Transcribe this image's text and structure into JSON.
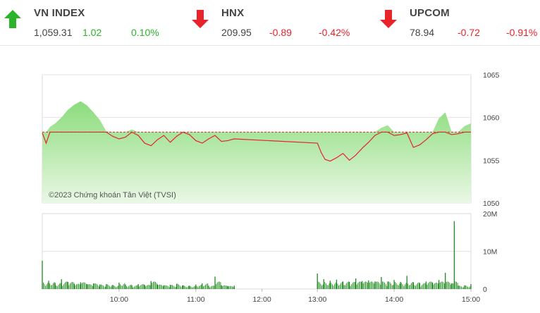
{
  "tickers": [
    {
      "name": "VN INDEX",
      "value": "1,059.31",
      "change": "1.02",
      "pct": "0.10%",
      "direction": "up",
      "selected": true
    },
    {
      "name": "HNX",
      "value": "209.95",
      "change": "-0.89",
      "pct": "-0.42%",
      "direction": "down",
      "selected": false
    },
    {
      "name": "UPCOM",
      "value": "78.94",
      "change": "-0.72",
      "pct": "-0.91%",
      "direction": "down",
      "selected": false
    }
  ],
  "colors": {
    "up": "#2bb42b",
    "down": "#e8232a",
    "area": "#9be38f",
    "volume": "#1f8a1f",
    "reference": "#c0392b"
  },
  "chart_data": [
    {
      "type": "line",
      "watermark": "©2023 Chứng khoán Tân Việt (TVSI)",
      "ylim": [
        1050,
        1065
      ],
      "yticks": [
        "1065",
        "1060",
        "1055",
        "1050"
      ],
      "reference": 1058.29,
      "series": [
        {
          "points": [
            [
              "09:00",
              1058.2
            ],
            [
              "09:03",
              1057.0
            ],
            [
              "09:06",
              1058.9
            ],
            [
              "09:10",
              1059.3
            ],
            [
              "09:15",
              1060.0
            ],
            [
              "09:20",
              1060.9
            ],
            [
              "09:25",
              1061.5
            ],
            [
              "09:30",
              1061.9
            ],
            [
              "09:35",
              1061.4
            ],
            [
              "09:40",
              1060.6
            ],
            [
              "09:45",
              1059.7
            ],
            [
              "09:50",
              1058.4
            ],
            [
              "09:55",
              1057.8
            ],
            [
              "10:00",
              1057.5
            ],
            [
              "10:05",
              1057.7
            ],
            [
              "10:10",
              1058.6
            ],
            [
              "10:15",
              1057.9
            ],
            [
              "10:20",
              1057.0
            ],
            [
              "10:25",
              1056.7
            ],
            [
              "10:30",
              1057.4
            ],
            [
              "10:35",
              1057.9
            ],
            [
              "10:40",
              1057.1
            ],
            [
              "10:45",
              1057.8
            ],
            [
              "10:50",
              1058.3
            ],
            [
              "10:55",
              1058.0
            ],
            [
              "11:00",
              1057.3
            ],
            [
              "11:05",
              1057.0
            ],
            [
              "11:10",
              1057.5
            ],
            [
              "11:15",
              1057.9
            ],
            [
              "11:20",
              1057.2
            ],
            [
              "11:25",
              1057.3
            ],
            [
              "11:30",
              1057.5
            ],
            [
              "13:00",
              1057.0
            ],
            [
              "13:03",
              1055.9
            ],
            [
              "13:06",
              1055.1
            ],
            [
              "13:10",
              1054.9
            ],
            [
              "13:15",
              1055.3
            ],
            [
              "13:20",
              1055.8
            ],
            [
              "13:25",
              1055.0
            ],
            [
              "13:30",
              1055.6
            ],
            [
              "13:35",
              1056.4
            ],
            [
              "13:40",
              1057.1
            ],
            [
              "13:45",
              1057.9
            ],
            [
              "13:50",
              1058.8
            ],
            [
              "13:55",
              1059.1
            ],
            [
              "14:00",
              1057.9
            ],
            [
              "14:05",
              1058.0
            ],
            [
              "14:10",
              1058.2
            ],
            [
              "14:15",
              1056.5
            ],
            [
              "14:20",
              1056.8
            ],
            [
              "14:25",
              1057.4
            ],
            [
              "14:30",
              1058.1
            ],
            [
              "14:35",
              1059.9
            ],
            [
              "14:40",
              1060.6
            ],
            [
              "14:45",
              1058.0
            ],
            [
              "14:50",
              1058.1
            ],
            [
              "14:55",
              1059.0
            ],
            [
              "15:00",
              1059.31
            ]
          ]
        }
      ]
    },
    {
      "type": "bar",
      "ylim": [
        0,
        20
      ],
      "yticks": [
        "20M",
        "10M",
        "0"
      ],
      "xticks": [
        "10:00",
        "11:00",
        "12:00",
        "13:00",
        "14:00",
        "15:00"
      ],
      "values": [
        [
          "09:00",
          7.5
        ],
        [
          "09:05",
          2.2
        ],
        [
          "09:10",
          1.6
        ],
        [
          "09:15",
          2.6
        ],
        [
          "09:20",
          1.9
        ],
        [
          "09:25",
          1.4
        ],
        [
          "09:30",
          1.8
        ],
        [
          "09:35",
          1.3
        ],
        [
          "09:40",
          1.5
        ],
        [
          "09:45",
          1.2
        ],
        [
          "09:50",
          1.3
        ],
        [
          "09:55",
          1.1
        ],
        [
          "10:00",
          1.7
        ],
        [
          "10:05",
          1.2
        ],
        [
          "10:10",
          1.0
        ],
        [
          "10:15",
          1.3
        ],
        [
          "10:20",
          1.1
        ],
        [
          "10:25",
          2.1
        ],
        [
          "10:30",
          1.2
        ],
        [
          "10:35",
          1.0
        ],
        [
          "10:40",
          1.1
        ],
        [
          "10:45",
          1.4
        ],
        [
          "10:50",
          1.0
        ],
        [
          "10:55",
          0.9
        ],
        [
          "11:00",
          1.2
        ],
        [
          "11:05",
          1.5
        ],
        [
          "11:10",
          0.9
        ],
        [
          "11:15",
          3.3
        ],
        [
          "11:20",
          1.0
        ],
        [
          "11:25",
          0.8
        ],
        [
          "11:30",
          0.9
        ],
        [
          "13:00",
          4.1
        ],
        [
          "13:05",
          2.6
        ],
        [
          "13:10",
          2.2
        ],
        [
          "13:15",
          2.5
        ],
        [
          "13:20",
          2.0
        ],
        [
          "13:25",
          1.9
        ],
        [
          "13:30",
          2.8
        ],
        [
          "13:35",
          2.1
        ],
        [
          "13:40",
          2.3
        ],
        [
          "13:45",
          2.0
        ],
        [
          "13:50",
          3.2
        ],
        [
          "13:55",
          2.0
        ],
        [
          "14:00",
          2.4
        ],
        [
          "14:05",
          1.9
        ],
        [
          "14:10",
          3.5
        ],
        [
          "14:15",
          1.8
        ],
        [
          "14:20",
          1.6
        ],
        [
          "14:25",
          2.0
        ],
        [
          "14:30",
          1.7
        ],
        [
          "14:35",
          2.4
        ],
        [
          "14:40",
          4.3
        ],
        [
          "14:45",
          1.5
        ],
        [
          "14:47",
          18.0
        ],
        [
          "14:50",
          0.9
        ],
        [
          "14:55",
          1.0
        ],
        [
          "15:00",
          1.3
        ]
      ]
    }
  ]
}
